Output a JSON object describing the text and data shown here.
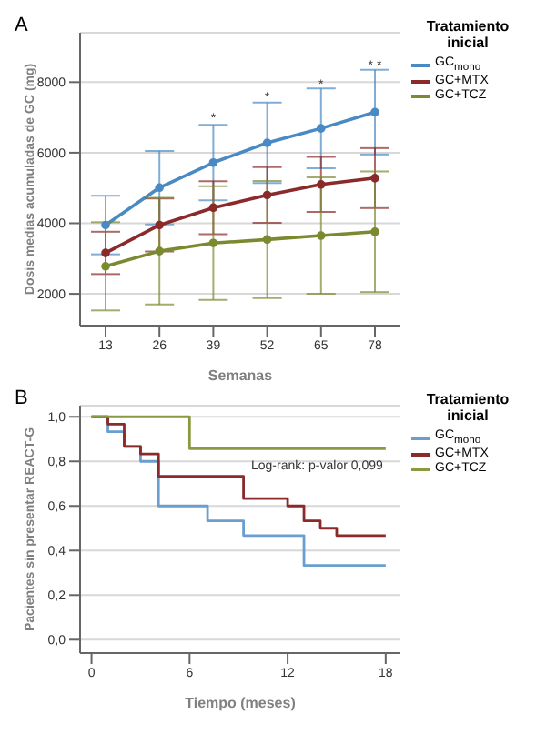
{
  "chart_data": [
    {
      "type": "line",
      "title": "A",
      "xlabel": "Semanas",
      "ylabel": "Dosis medias acumuladas de GC (mg)",
      "legend_title": "Tratamiento inicial",
      "legend": "right",
      "grid": "y",
      "marker": "circle",
      "categories": [
        "13",
        "26",
        "39",
        "52",
        "65",
        "78"
      ],
      "ylim": [
        1100,
        9400
      ],
      "yticks": [
        2000,
        4000,
        6000,
        8000
      ],
      "series": [
        {
          "name": "GC$_{mono}$",
          "color": "#4a8ac4",
          "values": [
            3950,
            5010,
            5720,
            6280,
            6690,
            7150
          ],
          "errors": [
            830,
            1040,
            1070,
            1140,
            1130,
            1200
          ]
        },
        {
          "name": "GC+MTX",
          "color": "#8b2a2a",
          "values": [
            3160,
            3950,
            4440,
            4800,
            5100,
            5280
          ],
          "errors": [
            600,
            750,
            750,
            790,
            780,
            850
          ]
        },
        {
          "name": "GC+TCZ",
          "color": "#7a8a30",
          "values": [
            2780,
            3210,
            3440,
            3540,
            3650,
            3760
          ],
          "errors": [
            1250,
            1510,
            1610,
            1660,
            1650,
            1710
          ]
        }
      ],
      "annotations": [
        {
          "text": "*",
          "x": "39",
          "y": 7000
        },
        {
          "text": "*",
          "x": "52",
          "y": 7600
        },
        {
          "text": "*",
          "x": "65",
          "y": 7950
        },
        {
          "text": "* *",
          "x": "78",
          "y": 8500
        }
      ]
    },
    {
      "type": "step",
      "title": "B",
      "xlabel": "Tiempo (meses)",
      "ylabel": "Pacientes sin presentar REACT-G",
      "legend_title": "Tratamiento inicial",
      "legend": "right",
      "grid": "y",
      "xlim": [
        -0.7,
        18.9
      ],
      "xticks": [
        0,
        6,
        12,
        18
      ],
      "ylim": [
        -0.06,
        1.05
      ],
      "yticks": [
        {
          "value": 0,
          "label": "0,0"
        },
        {
          "value": 0.2,
          "label": "0,2"
        },
        {
          "value": 0.4,
          "label": "0,4"
        },
        {
          "value": 0.6,
          "label": "0,6"
        },
        {
          "value": 0.8,
          "label": "0,8"
        },
        {
          "value": 1,
          "label": "1,0"
        }
      ],
      "series": [
        {
          "name": "GC$_{mono}$",
          "color": "#6a9ed0",
          "x": [
            0,
            1,
            2,
            3,
            4.1,
            7.1,
            9.3,
            13,
            18
          ],
          "values": [
            1,
            0.933,
            0.867,
            0.8,
            0.6,
            0.533,
            0.467,
            0.333,
            0.333
          ]
        },
        {
          "name": "GC+MTX",
          "color": "#8b2a2a",
          "x": [
            0,
            1,
            2,
            3,
            4.1,
            9.3,
            12,
            13,
            14,
            15,
            18
          ],
          "values": [
            1,
            0.967,
            0.867,
            0.833,
            0.733,
            0.633,
            0.6,
            0.533,
            0.5,
            0.467,
            0.467
          ]
        },
        {
          "name": "GC+TCZ",
          "color": "#8a9a40",
          "x": [
            0,
            6,
            18
          ],
          "values": [
            1,
            0.857,
            0.857
          ]
        }
      ],
      "annotations": [
        "Log-rank: p-valor 0,099"
      ]
    }
  ]
}
